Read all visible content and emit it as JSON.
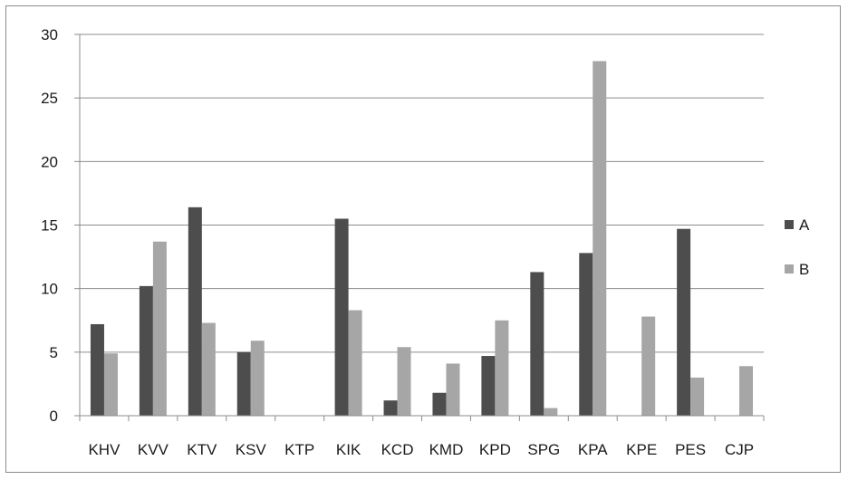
{
  "chart_data": {
    "type": "bar",
    "title": "",
    "xlabel": "",
    "ylabel": "",
    "ylim": [
      0,
      30
    ],
    "yticks": [
      0,
      5,
      10,
      15,
      20,
      25,
      30
    ],
    "grid": true,
    "legend_position": "right",
    "categories": [
      "KHV",
      "KVV",
      "KTV",
      "KSV",
      "KTP",
      "KIK",
      "KCD",
      "KMD",
      "KPD",
      "SPG",
      "KPA",
      "KPE",
      "PES",
      "CJP"
    ],
    "series": [
      {
        "name": "A",
        "color": "#4d4d4d",
        "values": [
          7.2,
          10.2,
          16.4,
          5.0,
          0,
          15.5,
          1.2,
          1.8,
          4.7,
          11.3,
          12.8,
          0,
          14.7,
          0
        ]
      },
      {
        "name": "B",
        "color": "#a6a6a6",
        "values": [
          4.9,
          13.7,
          7.3,
          5.9,
          0,
          8.3,
          5.4,
          4.1,
          7.5,
          0.6,
          27.9,
          7.8,
          3.0,
          3.9
        ]
      }
    ]
  }
}
